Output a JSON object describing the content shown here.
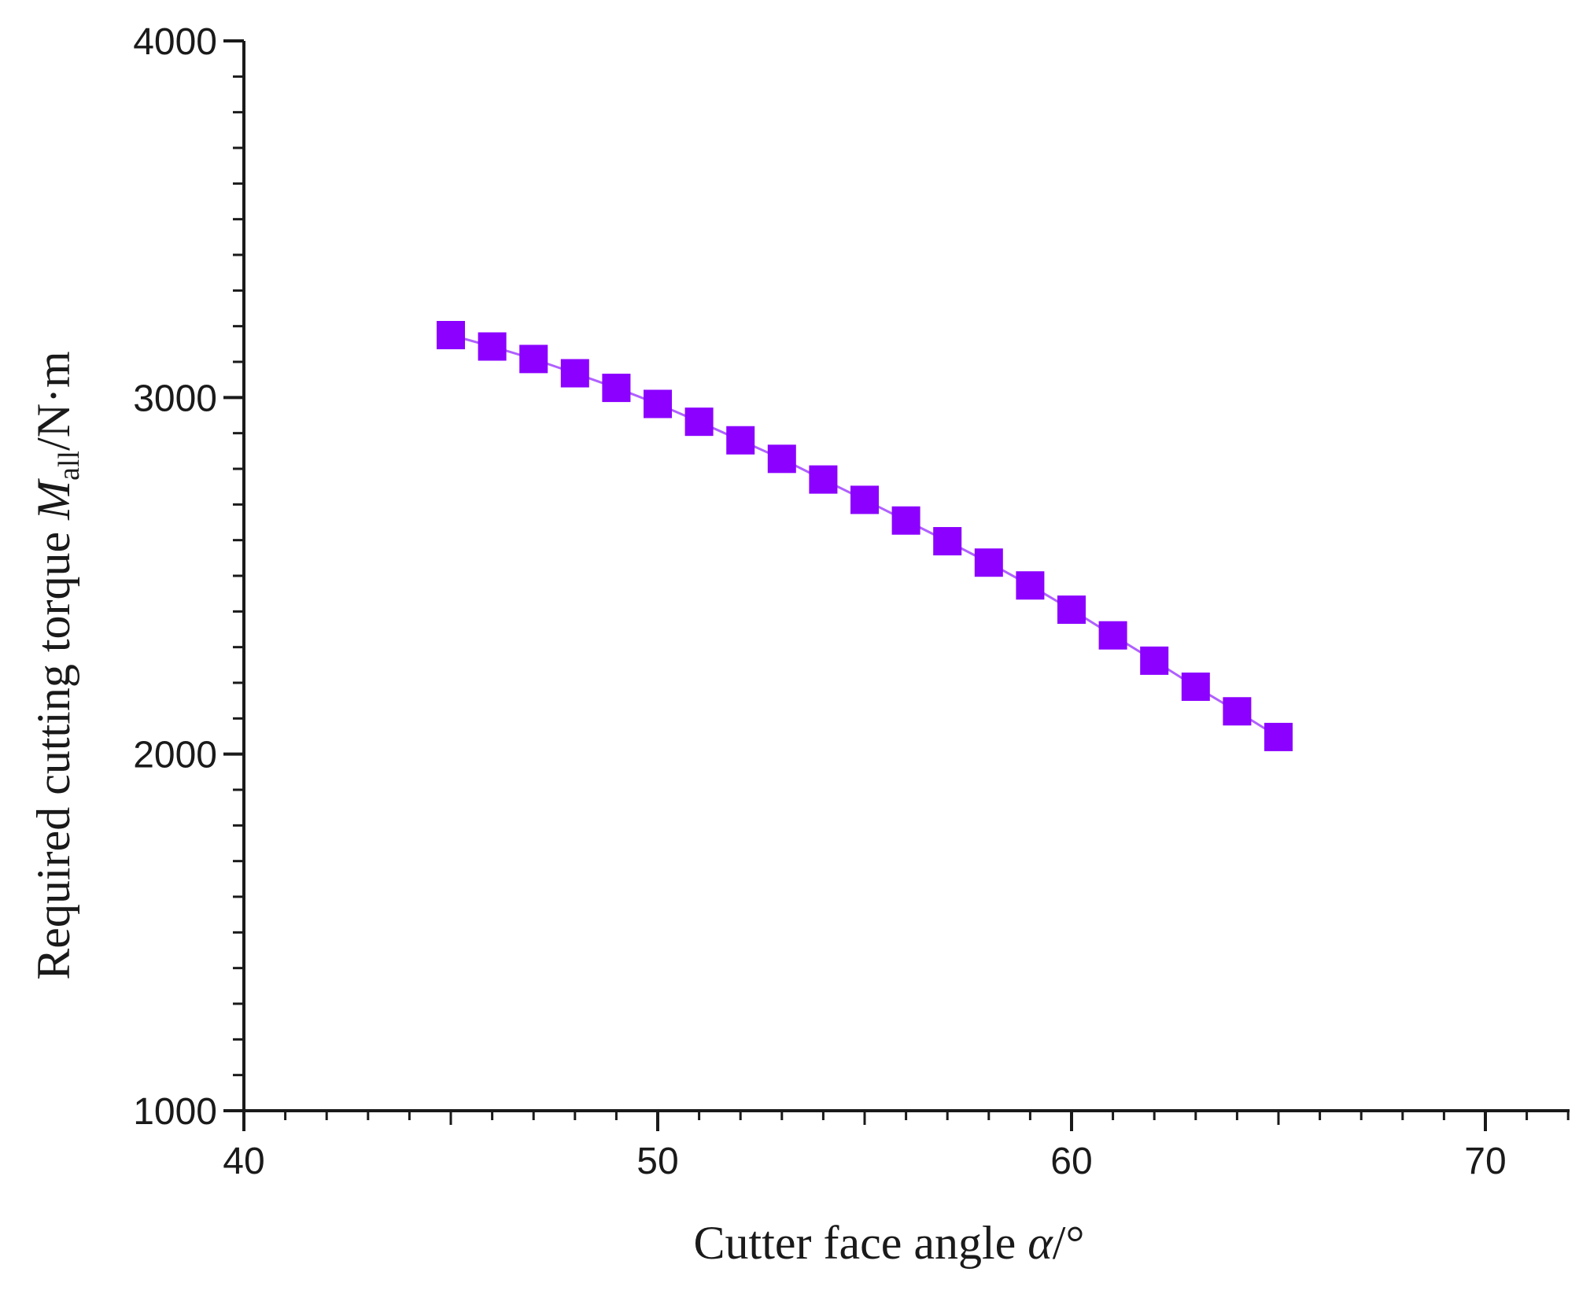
{
  "chart_data": {
    "type": "scatter",
    "xlabel": "Cutter face angle α/°",
    "ylabel": "Required cutting torque M_all/N·m",
    "xlabel_parts": {
      "text": "Cutter face angle ",
      "symbol": "α",
      "unit": "/°"
    },
    "ylabel_parts": {
      "text": "Required cutting torque ",
      "symbol": "M",
      "subscript": "all",
      "unit": "/N·m"
    },
    "xlim": [
      40,
      72
    ],
    "ylim": [
      1000,
      4000
    ],
    "xticks": [
      40,
      50,
      60,
      70
    ],
    "yticks": [
      1000,
      2000,
      3000,
      4000
    ],
    "x_minor_step": 1,
    "y_minor_step": 100,
    "grid": false,
    "marker": "square",
    "color": "#8B00FF",
    "line_color": "#B060FF",
    "series": [
      {
        "x": [
          45,
          46,
          47,
          48,
          49,
          50,
          51,
          52,
          53,
          54,
          55,
          56,
          57,
          58,
          59,
          60,
          61,
          62,
          63,
          64,
          65
        ],
        "y": [
          3175,
          3143,
          3108,
          3068,
          3027,
          2982,
          2932,
          2880,
          2828,
          2770,
          2713,
          2655,
          2597,
          2537,
          2473,
          2405,
          2333,
          2262,
          2189,
          2120,
          2048
        ]
      }
    ]
  }
}
